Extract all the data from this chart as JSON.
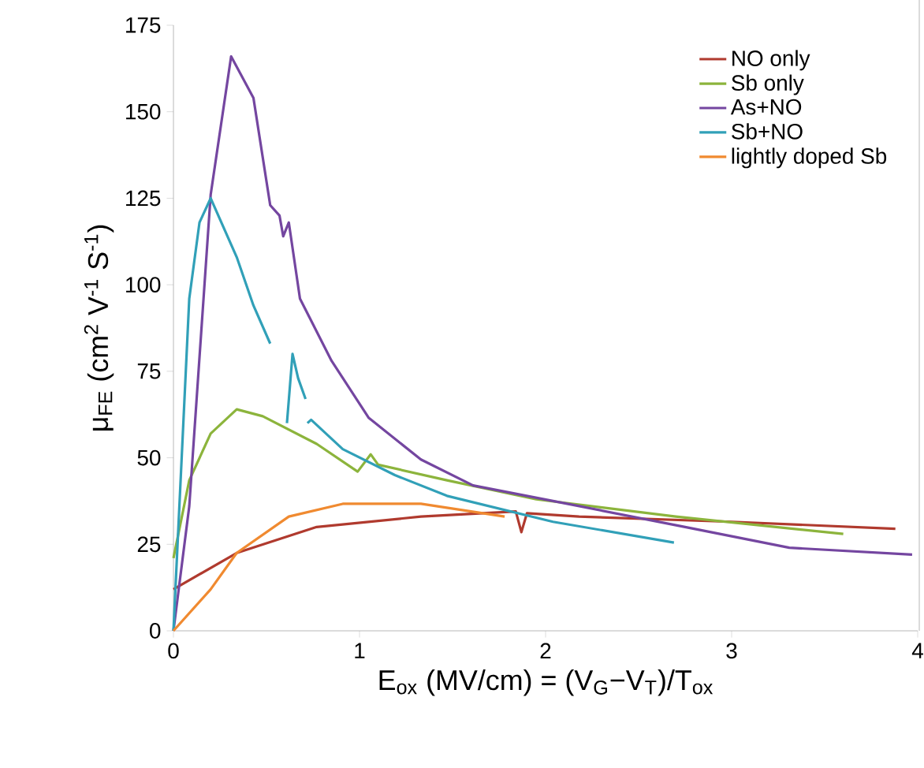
{
  "chart_data": {
    "type": "line",
    "xlabel": "E$_{ox}$ (MV/cm) = (V$_{G}$−V$_{T}$)/T$_{ox}$",
    "ylabel": "μ$_{FE}$ (cm$^{2}$ V$^{-1}$ S$^{-1}$)",
    "xlim": [
      0,
      4
    ],
    "ylim": [
      0,
      175
    ],
    "xticks": [
      0,
      1,
      2,
      3,
      4
    ],
    "yticks": [
      0,
      25,
      50,
      75,
      100,
      125,
      150,
      175
    ],
    "grid": false,
    "legend": "top right",
    "marker": "none",
    "line_style": "solid",
    "series": [
      {
        "name": "NO only",
        "color": "#b03a2e",
        "x": [
          0,
          0.34,
          0.77,
          1.33,
          1.84,
          1.87,
          1.9,
          2.18,
          3.0,
          3.88
        ],
        "values": [
          12,
          22.5,
          30,
          33,
          34.5,
          28.5,
          34,
          33,
          31.5,
          29.5
        ]
      },
      {
        "name": "Sb only",
        "color": "#8cb43c",
        "x": [
          0,
          0.085,
          0.2,
          0.34,
          0.48,
          0.77,
          0.99,
          1.06,
          1.1,
          1.47,
          1.95,
          2.7,
          3.6
        ],
        "values": [
          21,
          43.5,
          57,
          64,
          62,
          54,
          46,
          51,
          48,
          43.5,
          38,
          33,
          28
        ]
      },
      {
        "name": "As+NO",
        "color": "#7446a0",
        "x": [
          0,
          0.085,
          0.2,
          0.31,
          0.43,
          0.52,
          0.57,
          0.59,
          0.62,
          0.68,
          0.85,
          1.05,
          1.33,
          1.61,
          2.04,
          2.75,
          3.31,
          3.97
        ],
        "values": [
          0,
          36,
          126,
          166,
          154,
          123,
          120,
          114,
          118,
          96,
          78,
          61.5,
          49.5,
          42,
          37.5,
          30,
          24,
          22
        ]
      },
      {
        "name": "Sb+NO",
        "color": "#31a0b8",
        "x": [
          0,
          0.085,
          0.14,
          0.2,
          0.34,
          0.43,
          0.52,
          0.56,
          0.61,
          0.64,
          0.67,
          0.71,
          0.715,
          0.72,
          0.74,
          0.91,
          1.19,
          1.47,
          2.04,
          2.69
        ],
        "values": [
          0,
          96,
          118,
          125,
          108,
          94,
          83,
          null,
          60,
          80,
          73,
          67,
          null,
          60,
          61,
          52.5,
          45,
          39,
          31.5,
          25.5
        ]
      },
      {
        "name": "lightly doped Sb",
        "color": "#f08a30",
        "x": [
          0,
          0.2,
          0.34,
          0.62,
          0.91,
          1.33,
          1.78
        ],
        "values": [
          0,
          12,
          22.5,
          33,
          36.7,
          36.7,
          33
        ]
      }
    ]
  }
}
